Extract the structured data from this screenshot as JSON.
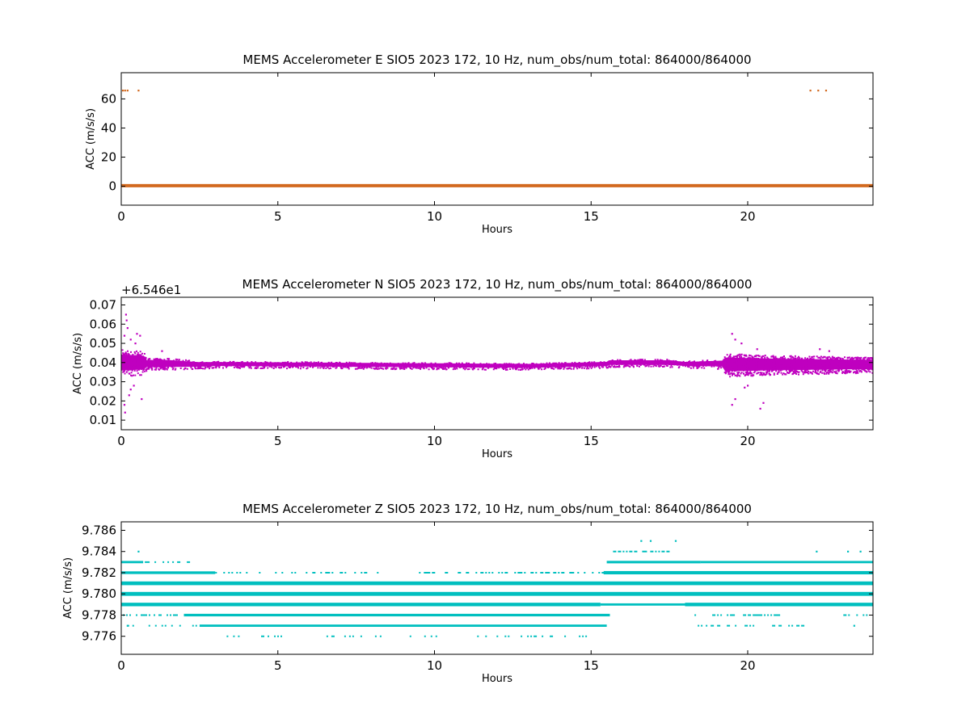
{
  "chart_data": [
    {
      "type": "scatter",
      "title": "MEMS Accelerometer E SIO5 2023 172, 10 Hz, num_obs/num_total: 864000/864000",
      "xlabel": "Hours",
      "ylabel": "ACC (m/s/s)",
      "xlim": [
        0,
        24
      ],
      "ylim": [
        -13,
        78
      ],
      "xticks": [
        0,
        5,
        10,
        15,
        20
      ],
      "yticks": [
        0,
        20,
        40,
        60
      ],
      "offset_label": "",
      "grid": false,
      "color": "#d2691e",
      "series": [
        {
          "bands": [
            {
              "y": 0.4,
              "x_start": 0,
              "x_end": 24,
              "thickness": 1.2
            }
          ],
          "points": [
            {
              "x": 0.05,
              "y": 65.8
            },
            {
              "x": 0.12,
              "y": 65.8
            },
            {
              "x": 0.2,
              "y": 65.8
            },
            {
              "x": 0.55,
              "y": 65.8
            },
            {
              "x": 22.0,
              "y": 65.8
            },
            {
              "x": 22.25,
              "y": 65.8
            },
            {
              "x": 22.5,
              "y": 65.8
            }
          ]
        }
      ]
    },
    {
      "type": "scatter",
      "title": "MEMS Accelerometer N SIO5 2023 172, 10 Hz, num_obs/num_total: 864000/864000",
      "xlabel": "Hours",
      "ylabel": "ACC (m/s/s)",
      "xlim": [
        0,
        24
      ],
      "ylim": [
        0.005,
        0.074
      ],
      "xticks": [
        0,
        5,
        10,
        15,
        20
      ],
      "yticks": [
        0.01,
        0.02,
        0.03,
        0.04,
        0.05,
        0.06,
        0.07
      ],
      "offset_label": "+6.546e1",
      "grid": false,
      "color": "#bf00bf",
      "series": [
        {
          "envelope": [
            {
              "x": 0.0,
              "lo": 0.033,
              "hi": 0.047
            },
            {
              "x": 0.7,
              "lo": 0.034,
              "hi": 0.046
            },
            {
              "x": 0.8,
              "lo": 0.0365,
              "hi": 0.0425
            },
            {
              "x": 1.5,
              "lo": 0.0365,
              "hi": 0.0425
            },
            {
              "x": 2.5,
              "lo": 0.037,
              "hi": 0.041
            },
            {
              "x": 3.0,
              "lo": 0.0375,
              "hi": 0.041
            },
            {
              "x": 8.0,
              "lo": 0.037,
              "hi": 0.0405
            },
            {
              "x": 13.0,
              "lo": 0.0365,
              "hi": 0.04
            },
            {
              "x": 15.5,
              "lo": 0.0375,
              "hi": 0.041
            },
            {
              "x": 15.6,
              "lo": 0.038,
              "hi": 0.042
            },
            {
              "x": 17.5,
              "lo": 0.038,
              "hi": 0.042
            },
            {
              "x": 18.0,
              "lo": 0.0375,
              "hi": 0.041
            },
            {
              "x": 19.2,
              "lo": 0.037,
              "hi": 0.042
            },
            {
              "x": 19.3,
              "lo": 0.033,
              "hi": 0.045
            },
            {
              "x": 21.0,
              "lo": 0.034,
              "hi": 0.044
            },
            {
              "x": 24.0,
              "lo": 0.035,
              "hi": 0.043
            }
          ],
          "points": [
            {
              "x": 0.15,
              "y": 0.065
            },
            {
              "x": 0.17,
              "y": 0.062
            },
            {
              "x": 0.2,
              "y": 0.058
            },
            {
              "x": 0.1,
              "y": 0.054
            },
            {
              "x": 0.3,
              "y": 0.052
            },
            {
              "x": 0.5,
              "y": 0.055
            },
            {
              "x": 0.6,
              "y": 0.054
            },
            {
              "x": 0.45,
              "y": 0.05
            },
            {
              "x": 0.12,
              "y": 0.014
            },
            {
              "x": 0.1,
              "y": 0.018
            },
            {
              "x": 0.25,
              "y": 0.023
            },
            {
              "x": 0.3,
              "y": 0.026
            },
            {
              "x": 0.65,
              "y": 0.021
            },
            {
              "x": 0.4,
              "y": 0.028
            },
            {
              "x": 1.3,
              "y": 0.046
            },
            {
              "x": 19.5,
              "y": 0.055
            },
            {
              "x": 19.6,
              "y": 0.052
            },
            {
              "x": 19.8,
              "y": 0.05
            },
            {
              "x": 19.5,
              "y": 0.018
            },
            {
              "x": 19.6,
              "y": 0.021
            },
            {
              "x": 20.4,
              "y": 0.016
            },
            {
              "x": 20.5,
              "y": 0.019
            },
            {
              "x": 20.3,
              "y": 0.047
            },
            {
              "x": 22.3,
              "y": 0.047
            },
            {
              "x": 22.6,
              "y": 0.046
            },
            {
              "x": 19.9,
              "y": 0.027
            },
            {
              "x": 20.0,
              "y": 0.028
            }
          ]
        }
      ]
    },
    {
      "type": "scatter",
      "title": "MEMS Accelerometer Z SIO5 2023 172, 10 Hz, num_obs/num_total: 864000/864000",
      "xlabel": "Hours",
      "ylabel": "ACC (m/s/s)",
      "xlim": [
        0,
        24
      ],
      "ylim": [
        9.7743,
        9.7868
      ],
      "xticks": [
        0,
        5,
        10,
        15,
        20
      ],
      "yticks": [
        9.776,
        9.778,
        9.78,
        9.782,
        9.784,
        9.786
      ],
      "ytick_labels": [
        "9.776",
        "9.778",
        "9.780",
        "9.782",
        "9.784",
        "9.786"
      ],
      "offset_label": "",
      "grid": false,
      "color": "#00bfbf",
      "series": [
        {
          "levels": [
            {
              "y": 9.776,
              "segments": [
                [
                  2.9,
                  3.8,
                  0.35
                ],
                [
                  4.0,
                  5.5,
                  0.2
                ],
                [
                  6.5,
                  8.5,
                  0.15
                ],
                [
                  9.0,
                  10.5,
                  0.15
                ],
                [
                  11.0,
                  12.5,
                  0.15
                ],
                [
                  12.7,
                  15.3,
                  0.3
                ]
              ]
            },
            {
              "y": 9.777,
              "segments": [
                [
                  0.2,
                  2.5,
                  0.2
                ],
                [
                  2.5,
                  15.5,
                  1.0
                ],
                [
                  18.3,
                  22.0,
                  0.3
                ]
              ]
            },
            {
              "y": 9.778,
              "segments": [
                [
                  0.0,
                  2.0,
                  0.5
                ],
                [
                  2.0,
                  15.6,
                  1.3
                ],
                [
                  18.3,
                  21.0,
                  0.4
                ],
                [
                  23.0,
                  24.0,
                  0.2
                ]
              ]
            },
            {
              "y": 9.779,
              "segments": [
                [
                  0.0,
                  15.3,
                  2.2
                ],
                [
                  15.3,
                  18.0,
                  1.0
                ],
                [
                  18.0,
                  24.0,
                  2.2
                ]
              ]
            },
            {
              "y": 9.78,
              "segments": [
                [
                  0.0,
                  24.0,
                  2.6
                ]
              ]
            },
            {
              "y": 9.781,
              "segments": [
                [
                  0.0,
                  24.0,
                  2.4
                ]
              ]
            },
            {
              "y": 9.782,
              "segments": [
                [
                  0.0,
                  3.0,
                  1.4
                ],
                [
                  3.0,
                  15.4,
                  0.25
                ],
                [
                  15.4,
                  24.0,
                  2.0
                ]
              ]
            },
            {
              "y": 9.783,
              "segments": [
                [
                  0.0,
                  0.7,
                  1.0
                ],
                [
                  0.7,
                  2.2,
                  0.3
                ],
                [
                  15.5,
                  18.5,
                  1.2
                ],
                [
                  18.5,
                  24.0,
                  1.0
                ]
              ]
            },
            {
              "y": 9.784,
              "segments": [
                [
                  15.7,
                  17.5,
                  0.5
                ]
              ]
            }
          ],
          "points": [
            {
              "x": 0.55,
              "y": 9.784
            },
            {
              "x": 22.2,
              "y": 9.784
            },
            {
              "x": 23.2,
              "y": 9.784
            },
            {
              "x": 23.6,
              "y": 9.784
            },
            {
              "x": 16.6,
              "y": 9.785
            },
            {
              "x": 16.9,
              "y": 9.785
            },
            {
              "x": 17.7,
              "y": 9.785
            },
            {
              "x": 0.2,
              "y": 9.777
            },
            {
              "x": 23.4,
              "y": 9.777
            }
          ]
        }
      ]
    }
  ]
}
